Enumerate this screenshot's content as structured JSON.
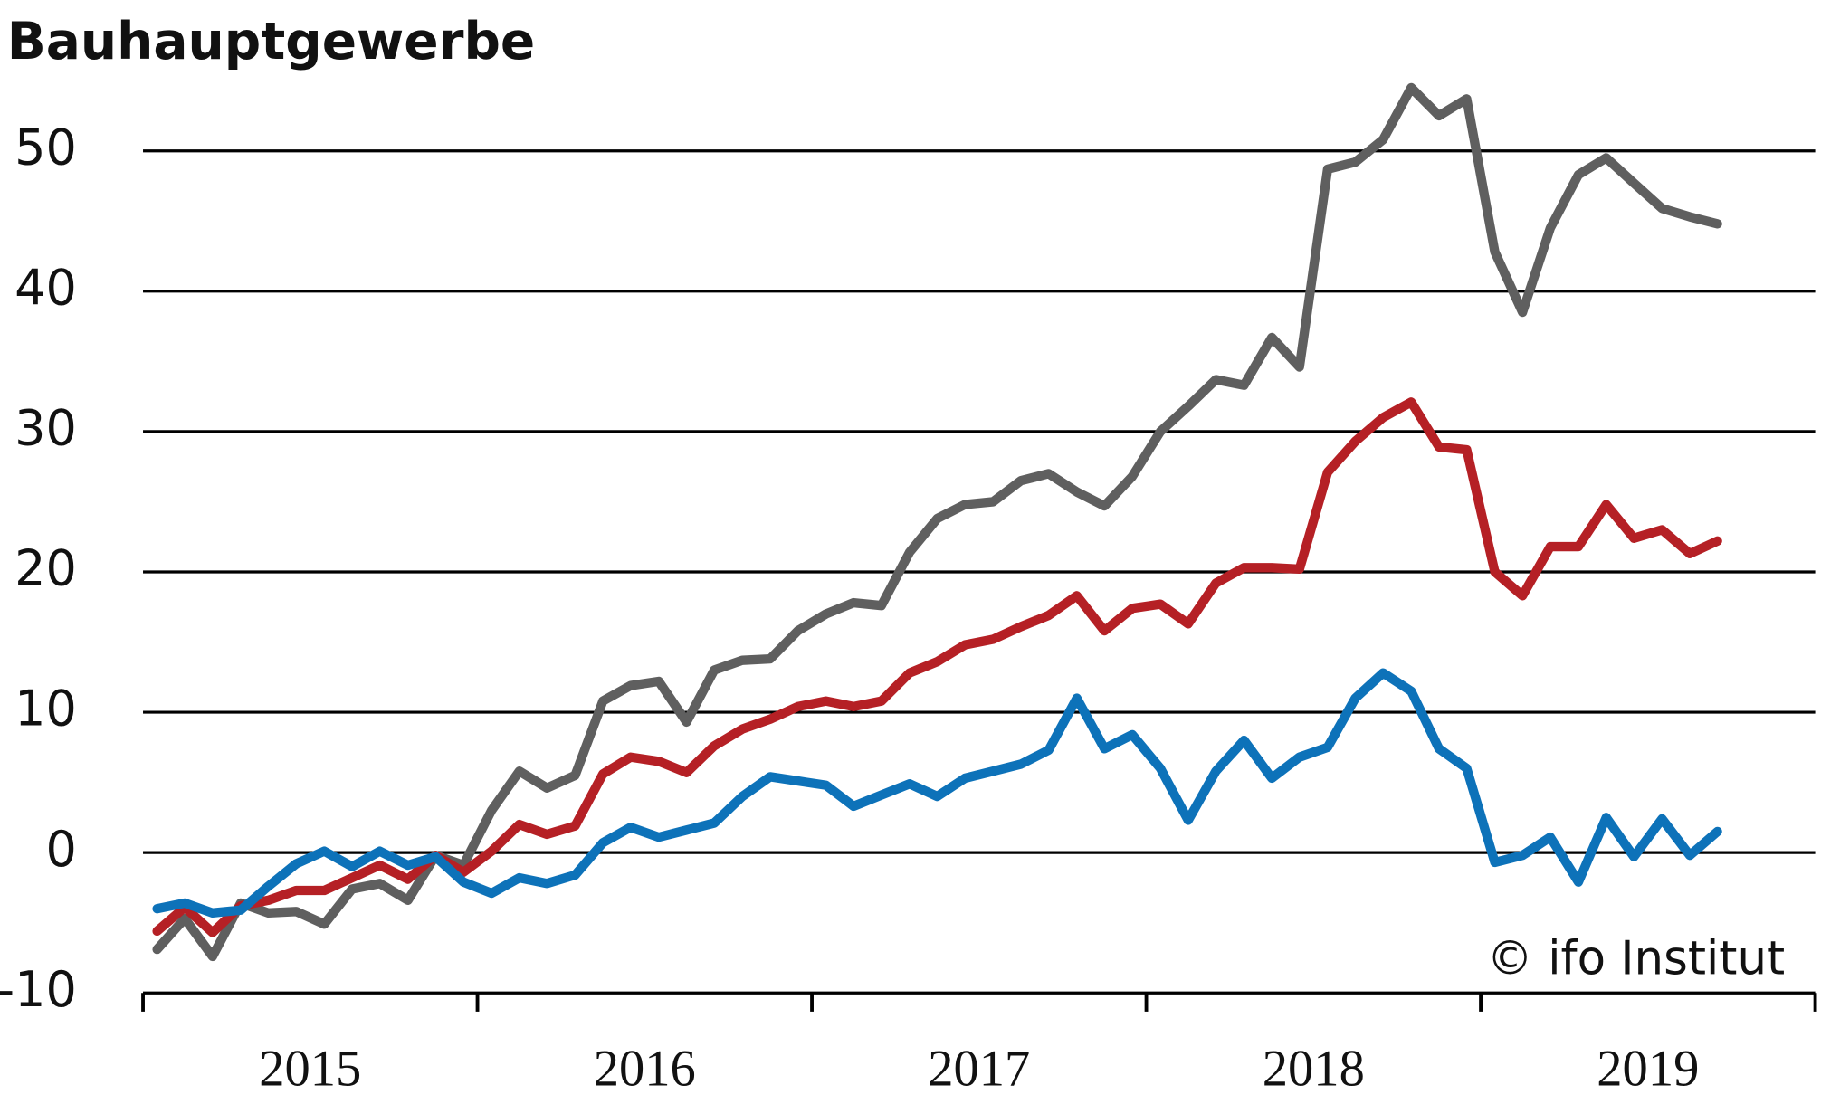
{
  "chart_data": {
    "type": "line",
    "title": "Bauhauptgewerbe",
    "annotation": "© ifo Institut",
    "x": [
      2015.042,
      2015.125,
      2015.208,
      2015.292,
      2015.375,
      2015.458,
      2015.542,
      2015.625,
      2015.708,
      2015.792,
      2015.875,
      2015.958,
      2016.042,
      2016.125,
      2016.208,
      2016.292,
      2016.375,
      2016.458,
      2016.542,
      2016.625,
      2016.708,
      2016.792,
      2016.875,
      2016.958,
      2017.042,
      2017.125,
      2017.208,
      2017.292,
      2017.375,
      2017.458,
      2017.542,
      2017.625,
      2017.708,
      2017.792,
      2017.875,
      2017.958,
      2018.042,
      2018.125,
      2018.208,
      2018.292,
      2018.375,
      2018.458,
      2018.542,
      2018.625,
      2018.708,
      2018.792,
      2018.875,
      2018.958,
      2019.042,
      2019.125,
      2019.208,
      2019.292,
      2019.375,
      2019.458,
      2019.542,
      2019.625,
      2019.708
    ],
    "series": [
      {
        "color": "#5f5f5f",
        "values": [
          -6.9,
          -4.7,
          -7.4,
          -3.6,
          -4.3,
          -4.2,
          -5.1,
          -2.6,
          -2.2,
          -3.4,
          -0.2,
          -0.9,
          3,
          5.8,
          4.6,
          5.5,
          10.8,
          11.9,
          12.2,
          9.3,
          13,
          13.7,
          13.8,
          15.8,
          17,
          17.8,
          17.6,
          21.4,
          23.8,
          24.8,
          25,
          26.5,
          27,
          25.7,
          24.7,
          26.8,
          30,
          31.8,
          33.7,
          33.3,
          36.7,
          34.6,
          48.7,
          49.2,
          50.8,
          54.5,
          52.5,
          53.7,
          42.8,
          38.5,
          44.5,
          48.3,
          49.5,
          47.7,
          45.9,
          45.3,
          44.8
        ]
      },
      {
        "color": "#b52025",
        "values": [
          -5.6,
          -3.9,
          -5.7,
          -3.8,
          -3.4,
          -2.7,
          -2.7,
          -1.8,
          -0.9,
          -1.9,
          -0.2,
          -1.4,
          0.1,
          2,
          1.3,
          1.9,
          5.6,
          6.8,
          6.5,
          5.7,
          7.6,
          8.8,
          9.5,
          10.4,
          10.8,
          10.4,
          10.8,
          12.8,
          13.6,
          14.8,
          15.2,
          16.1,
          16.9,
          18.3,
          15.8,
          17.4,
          17.7,
          16.3,
          19.2,
          20.3,
          20.3,
          20.2,
          27.1,
          29.3,
          31,
          32.1,
          28.9,
          28.7,
          20,
          18.3,
          21.8,
          21.8,
          24.8,
          22.4,
          23,
          21.3,
          22.2
        ]
      },
      {
        "color": "#0d72b9",
        "values": [
          -4,
          -3.6,
          -4.3,
          -4.1,
          -2.4,
          -0.8,
          0.1,
          -1,
          0.1,
          -0.9,
          -0.3,
          -2.1,
          -2.9,
          -1.8,
          -2.2,
          -1.6,
          0.7,
          1.8,
          1.1,
          1.6,
          2.1,
          4,
          5.4,
          5.1,
          4.8,
          3.3,
          4.1,
          4.9,
          4,
          5.3,
          5.8,
          6.3,
          7.3,
          11,
          7.4,
          8.4,
          6,
          2.3,
          5.8,
          8,
          5.3,
          6.8,
          7.5,
          11,
          12.8,
          11.5,
          7.4,
          6,
          -0.7,
          -0.2,
          1.1,
          -2.1,
          2.5,
          -0.3,
          2.4,
          -0.2,
          1.5
        ]
      }
    ],
    "xlim": [
      2015,
      2020
    ],
    "xticks": [
      {
        "value": 2015.5,
        "label": "2015"
      },
      {
        "value": 2016.5,
        "label": "2016"
      },
      {
        "value": 2017.5,
        "label": "2017"
      },
      {
        "value": 2018.5,
        "label": "2018"
      },
      {
        "value": 2019.5,
        "label": "2019"
      }
    ],
    "ylim": [
      -10,
      55
    ],
    "yticks": [
      -10,
      0,
      10,
      20,
      30,
      40,
      50
    ],
    "grid": true
  }
}
